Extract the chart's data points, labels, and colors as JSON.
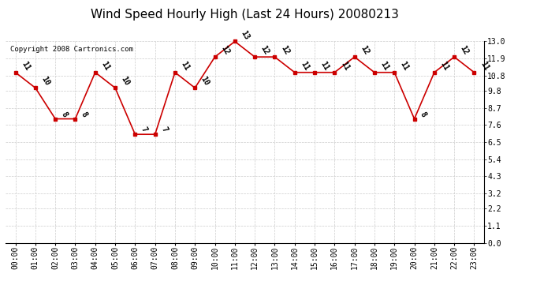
{
  "title": "Wind Speed Hourly High (Last 24 Hours) 20080213",
  "copyright": "Copyright 2008 Cartronics.com",
  "hours": [
    "00:00",
    "01:00",
    "02:00",
    "03:00",
    "04:00",
    "05:00",
    "06:00",
    "07:00",
    "08:00",
    "09:00",
    "10:00",
    "11:00",
    "12:00",
    "13:00",
    "14:00",
    "15:00",
    "16:00",
    "17:00",
    "18:00",
    "19:00",
    "20:00",
    "21:00",
    "22:00",
    "23:00"
  ],
  "values": [
    11,
    10,
    8,
    8,
    11,
    10,
    7,
    7,
    11,
    10,
    12,
    13,
    12,
    12,
    11,
    11,
    11,
    12,
    11,
    11,
    8,
    11,
    12,
    11
  ],
  "ylim": [
    0.0,
    13.0
  ],
  "yticks": [
    0.0,
    1.1,
    2.2,
    3.2,
    4.3,
    5.4,
    6.5,
    7.6,
    8.7,
    9.8,
    10.8,
    11.9,
    13.0
  ],
  "ytick_labels": [
    "0.0",
    "1.1",
    "2.2",
    "3.2",
    "4.3",
    "5.4",
    "6.5",
    "7.6",
    "8.7",
    "9.8",
    "10.8",
    "11.9",
    "13.0"
  ],
  "line_color": "#cc0000",
  "marker_color": "#cc0000",
  "marker_style": "s",
  "marker_size": 3,
  "background_color": "#ffffff",
  "plot_bg_color": "#ffffff",
  "grid_color": "#cccccc",
  "title_fontsize": 11,
  "tick_fontsize": 7,
  "label_fontsize": 7,
  "copyright_fontsize": 6.5
}
